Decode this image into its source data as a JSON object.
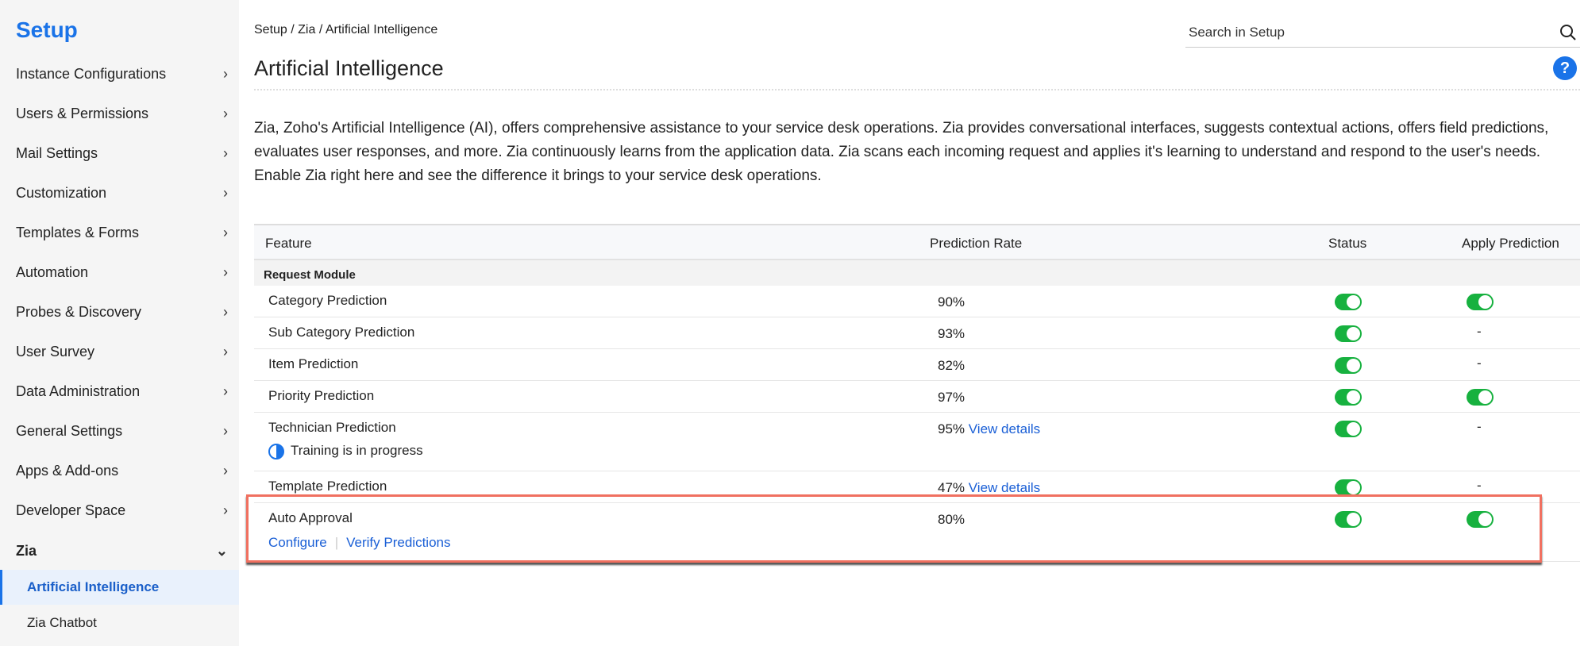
{
  "sidebar": {
    "title": "Setup",
    "items": [
      {
        "label": "Instance Configurations"
      },
      {
        "label": "Users & Permissions"
      },
      {
        "label": "Mail Settings"
      },
      {
        "label": "Customization"
      },
      {
        "label": "Templates & Forms"
      },
      {
        "label": "Automation"
      },
      {
        "label": "Probes & Discovery"
      },
      {
        "label": "User Survey"
      },
      {
        "label": "Data Administration"
      },
      {
        "label": "General Settings"
      },
      {
        "label": "Apps & Add-ons"
      },
      {
        "label": "Developer Space"
      }
    ],
    "zia": {
      "label": "Zia",
      "children": [
        {
          "label": "Artificial Intelligence",
          "active": true
        },
        {
          "label": "Zia Chatbot"
        }
      ]
    }
  },
  "header": {
    "breadcrumb": "Setup / Zia / Artificial Intelligence",
    "title": "Artificial Intelligence",
    "search_placeholder": "Search in Setup",
    "help": "?"
  },
  "description": "Zia, Zoho's Artificial Intelligence (AI), offers comprehensive assistance to your service desk operations. Zia provides conversational interfaces, suggests contextual actions, offers field predictions, evaluates user responses, and more. Zia continuously learns from the application data. Zia scans each incoming request and applies it's learning to understand and respond to the user's needs. Enable Zia right here and see the difference it brings to your service desk operations.",
  "table": {
    "columns": [
      "Feature",
      "Prediction Rate",
      "Status",
      "Apply Prediction"
    ],
    "module": "Request Module",
    "rows": [
      {
        "feature": "Category Prediction",
        "rate": "90%",
        "status": true,
        "apply": true
      },
      {
        "feature": "Sub Category Prediction",
        "rate": "93%",
        "status": true,
        "apply": "-"
      },
      {
        "feature": "Item Prediction",
        "rate": "82%",
        "status": true,
        "apply": "-"
      },
      {
        "feature": "Priority Prediction",
        "rate": "97%",
        "status": true,
        "apply": true
      },
      {
        "feature": "Technician Prediction",
        "rate": "95%",
        "link": "View details",
        "note": "Training is in progress",
        "status": true,
        "apply": "-"
      },
      {
        "feature": "Template Prediction",
        "rate": "47%",
        "link": "View details",
        "status": true,
        "apply": "-"
      },
      {
        "feature": "Auto Approval",
        "rate": "80%",
        "status": true,
        "apply": true,
        "actions": [
          "Configure",
          "Verify Predictions"
        ]
      }
    ]
  },
  "colors": {
    "accent": "#1a73e8",
    "toggle_on": "#17b13f",
    "highlight_box": "#f07060"
  }
}
